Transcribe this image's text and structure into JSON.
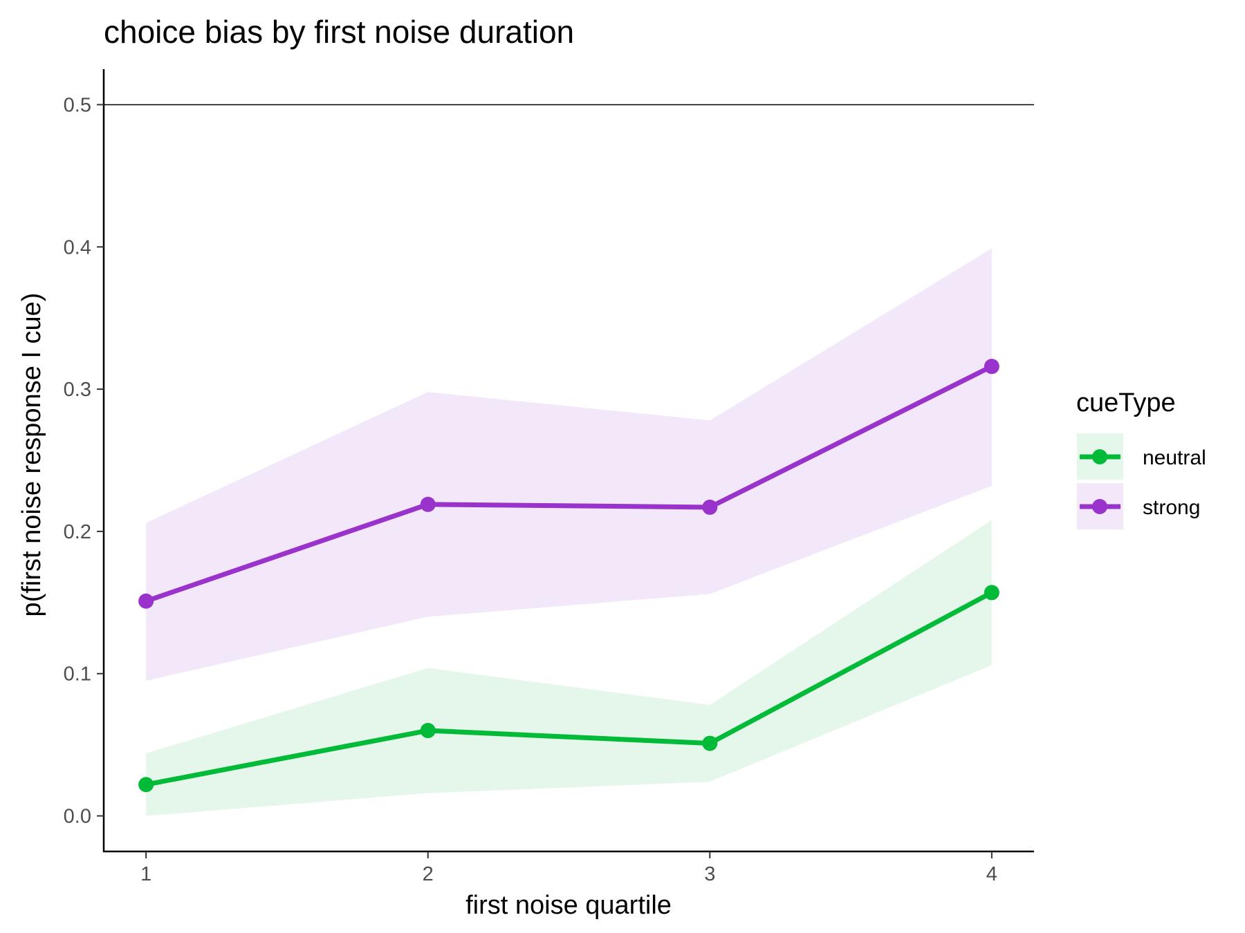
{
  "chart_data": {
    "type": "line",
    "title": "choice bias by first noise duration",
    "xlabel": "first noise quartile",
    "ylabel": "p(first noise response I cue)",
    "categories": [
      "1",
      "2",
      "3",
      "4"
    ],
    "x": [
      1,
      2,
      3,
      4
    ],
    "xlim": [
      0.85,
      4.15
    ],
    "ylim": [
      -0.025,
      0.525
    ],
    "yticks": [
      0.0,
      0.1,
      0.2,
      0.3,
      0.4,
      0.5
    ],
    "ytick_labels": [
      "0.0",
      "0.1",
      "0.2",
      "0.3",
      "0.4",
      "0.5"
    ],
    "reference_line": 0.5,
    "grid": false,
    "legend": {
      "title": "cueType",
      "position": "right"
    },
    "series": [
      {
        "name": "neutral",
        "color": "#00ba38",
        "ribbon_color": "#e5f7ea",
        "values": [
          0.022,
          0.06,
          0.051,
          0.157
        ],
        "lower": [
          0.0,
          0.016,
          0.024,
          0.106
        ],
        "upper": [
          0.044,
          0.104,
          0.078,
          0.208
        ]
      },
      {
        "name": "strong",
        "color": "#9933cc",
        "ribbon_color": "#f3e8f9",
        "values": [
          0.151,
          0.219,
          0.217,
          0.316
        ],
        "lower": [
          0.095,
          0.14,
          0.156,
          0.232
        ],
        "upper": [
          0.206,
          0.298,
          0.278,
          0.399
        ]
      }
    ]
  }
}
